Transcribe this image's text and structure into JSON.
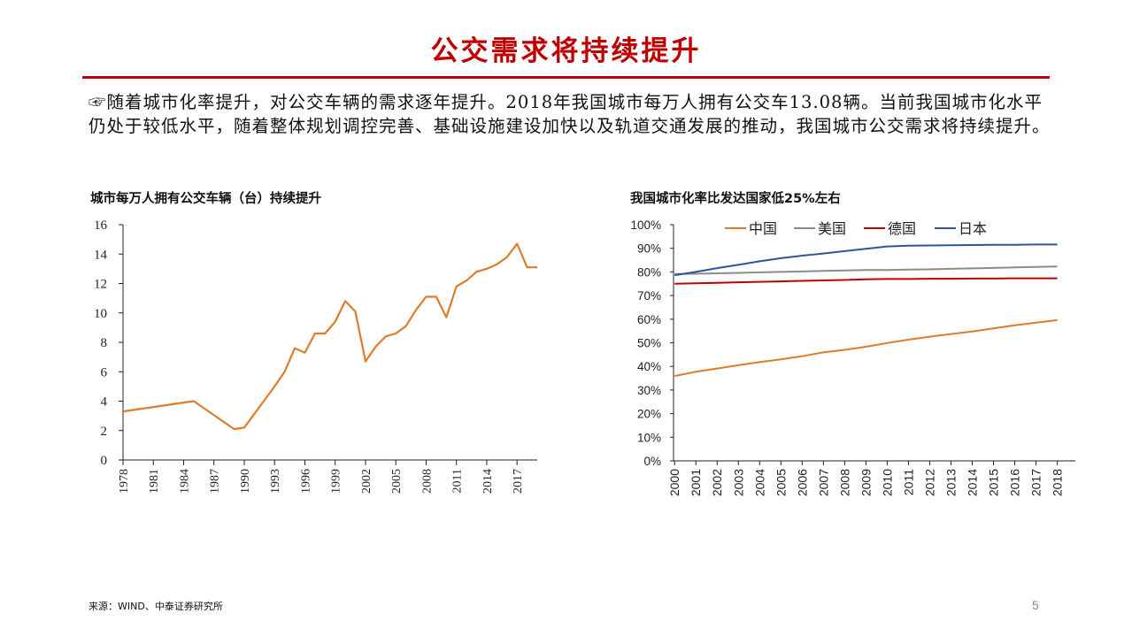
{
  "page": {
    "title": "公交需求将持续提升",
    "intro": "☞随着城市化率提升，对公交车辆的需求逐年提升。2018年我国城市每万人拥有公交车13.08辆。当前我国城市化水平仍处于较低水平，随着整体规划调控完善、基础设施建设加快以及轨道交通发展的推动，我国城市公交需求将持续提升。",
    "source": "来源：WIND、中泰证券研究所",
    "page_number": "5",
    "accent_color": "#c00000"
  },
  "chart_data": [
    {
      "type": "line",
      "title": "城市每万人拥有公交车辆（台）持续提升",
      "xlabel": "",
      "ylabel": "",
      "ylim": [
        0,
        16
      ],
      "yticks": [
        "0",
        "2",
        "4",
        "6",
        "8",
        "10",
        "12",
        "14",
        "16"
      ],
      "xtick_labels": [
        "1978",
        "1981",
        "1984",
        "1987",
        "1990",
        "1993",
        "1996",
        "1999",
        "2002",
        "2005",
        "2008",
        "2011",
        "2014",
        "2017"
      ],
      "grid": false,
      "series": [
        {
          "color": "#e07b28",
          "points": [
            [
              1978,
              3.3
            ],
            [
              1985,
              4.0
            ],
            [
              1989,
              2.1
            ],
            [
              1990,
              2.2
            ],
            [
              1993,
              5.0
            ],
            [
              1994,
              6.0
            ],
            [
              1995,
              7.6
            ],
            [
              1996,
              7.3
            ],
            [
              1997,
              8.6
            ],
            [
              1998,
              8.6
            ],
            [
              1999,
              9.4
            ],
            [
              2000,
              10.8
            ],
            [
              2001,
              10.1
            ],
            [
              2002,
              6.7
            ],
            [
              2003,
              7.7
            ],
            [
              2004,
              8.4
            ],
            [
              2005,
              8.6
            ],
            [
              2006,
              9.1
            ],
            [
              2007,
              10.2
            ],
            [
              2008,
              11.1
            ],
            [
              2009,
              11.1
            ],
            [
              2010,
              9.7
            ],
            [
              2011,
              11.8
            ],
            [
              2012,
              12.2
            ],
            [
              2013,
              12.8
            ],
            [
              2014,
              13.0
            ],
            [
              2015,
              13.3
            ],
            [
              2016,
              13.8
            ],
            [
              2017,
              14.7
            ],
            [
              2018,
              13.1
            ],
            [
              2019,
              13.1
            ]
          ]
        }
      ]
    },
    {
      "type": "line",
      "title": "我国城市化率比发达国家低25%左右",
      "xlabel": "",
      "ylabel": "",
      "ylim": [
        0,
        100
      ],
      "yticks": [
        "0%",
        "10%",
        "20%",
        "30%",
        "40%",
        "50%",
        "60%",
        "70%",
        "80%",
        "90%",
        "100%"
      ],
      "categories": [
        "2000",
        "2001",
        "2002",
        "2003",
        "2004",
        "2005",
        "2006",
        "2007",
        "2008",
        "2009",
        "2010",
        "2011",
        "2012",
        "2013",
        "2014",
        "2015",
        "2016",
        "2017",
        "2018"
      ],
      "legend_position": "top",
      "grid": false,
      "series": [
        {
          "name": "中国",
          "color": "#e07b28",
          "values": [
            35.9,
            37.7,
            39.1,
            40.5,
            41.8,
            43.0,
            44.3,
            45.9,
            47.0,
            48.3,
            49.9,
            51.3,
            52.6,
            53.7,
            54.8,
            56.1,
            57.4,
            58.5,
            59.6
          ]
        },
        {
          "name": "美国",
          "color": "#8c8c8c",
          "values": [
            79.1,
            79.2,
            79.4,
            79.6,
            79.8,
            80.0,
            80.2,
            80.4,
            80.6,
            80.8,
            80.8,
            81.0,
            81.1,
            81.3,
            81.5,
            81.7,
            81.9,
            82.1,
            82.3
          ]
        },
        {
          "name": "德国",
          "color": "#c00000",
          "values": [
            75.0,
            75.2,
            75.4,
            75.6,
            75.8,
            76.0,
            76.2,
            76.4,
            76.6,
            76.9,
            77.0,
            77.0,
            77.1,
            77.1,
            77.2,
            77.2,
            77.3,
            77.3,
            77.3
          ]
        },
        {
          "name": "日本",
          "color": "#2f5597",
          "values": [
            78.6,
            80.0,
            81.6,
            83.0,
            84.5,
            85.8,
            86.9,
            87.8,
            88.8,
            89.8,
            90.8,
            91.1,
            91.2,
            91.3,
            91.4,
            91.5,
            91.5,
            91.6,
            91.6
          ]
        }
      ]
    }
  ]
}
